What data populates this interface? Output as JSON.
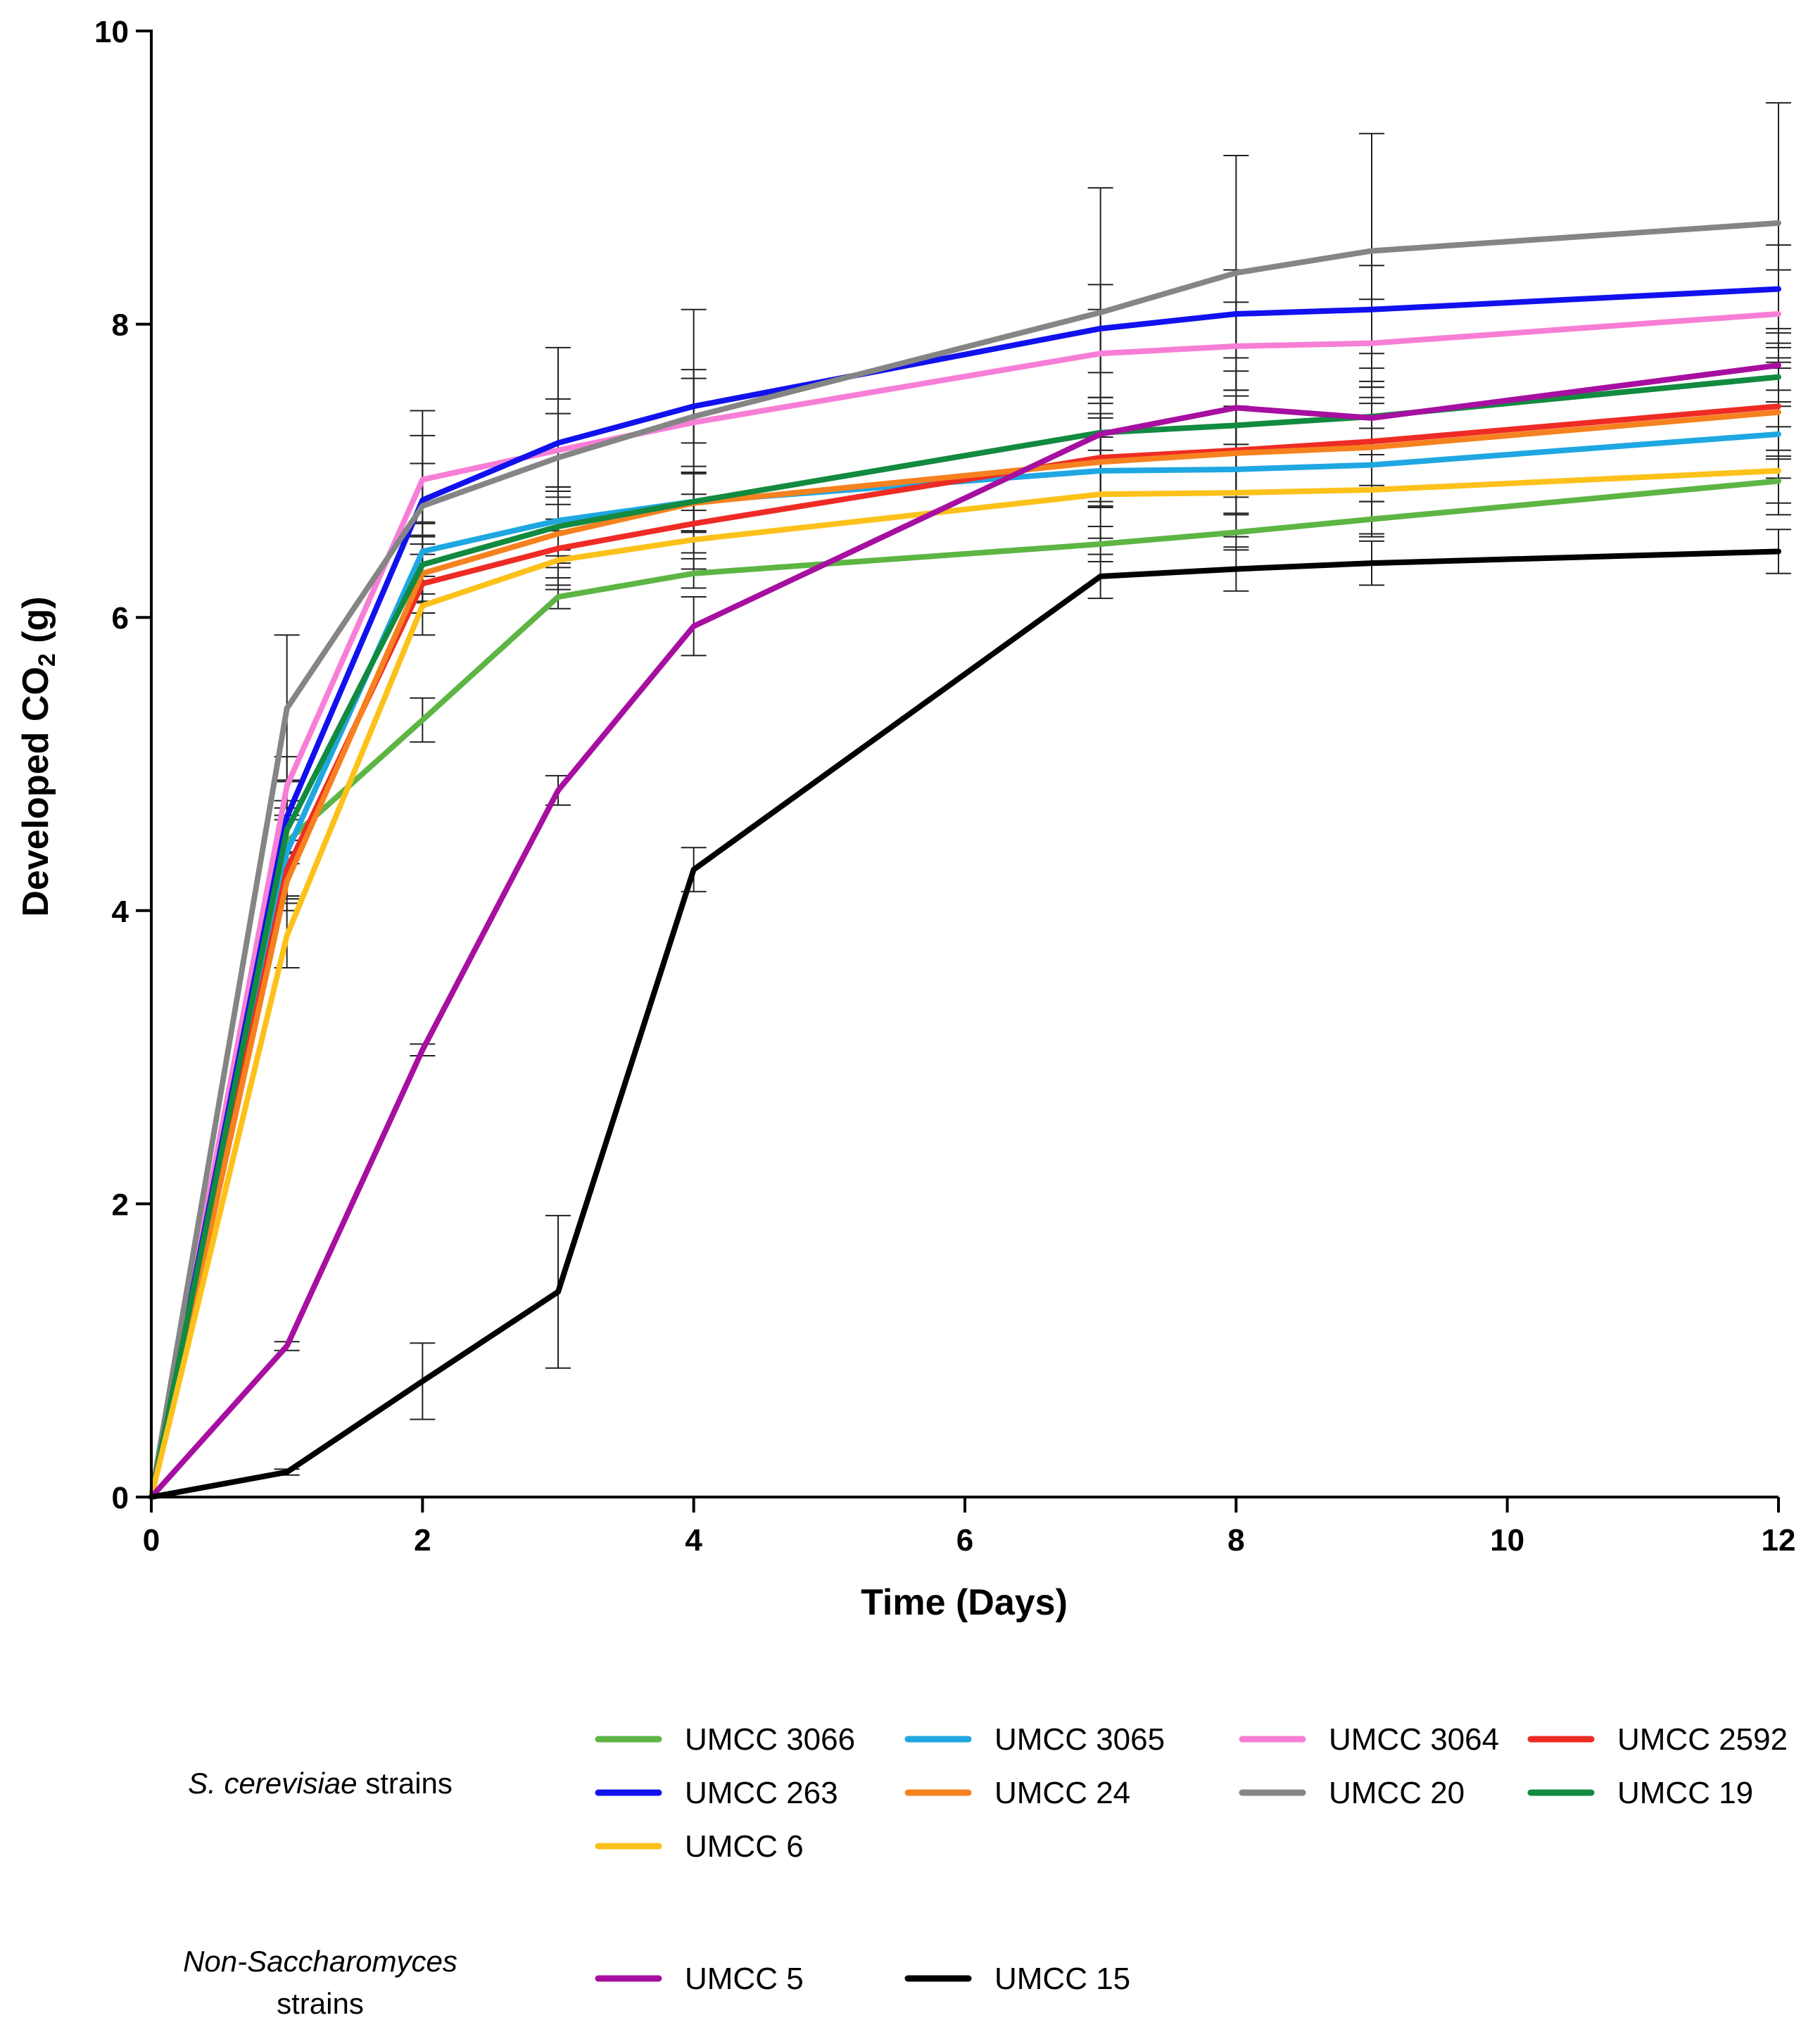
{
  "chart_data": {
    "type": "line",
    "title": "",
    "xlabel": "Time (Days)",
    "ylabel_main": "Developed CO",
    "ylabel_sub": "2",
    "ylabel_unit": " (g)",
    "xlim": [
      0,
      12
    ],
    "ylim": [
      0,
      10
    ],
    "xticks": [
      0,
      2,
      4,
      6,
      8,
      10,
      12
    ],
    "yticks": [
      0,
      2,
      4,
      6,
      8,
      10
    ],
    "grid": false,
    "legend_position": "bottom",
    "x": [
      0,
      1,
      2,
      3,
      4,
      7,
      8,
      9,
      12
    ],
    "series": [
      {
        "name": "UMCC 3066",
        "group": "scer",
        "color": "#5db544",
        "values": [
          0,
          4.47,
          5.3,
          6.14,
          6.3,
          6.5,
          6.58,
          6.67,
          6.93
        ],
        "errors": [
          0,
          0.15,
          0.15,
          0.08,
          0.1,
          0.12,
          0.12,
          0.12,
          0.15
        ]
      },
      {
        "name": "UMCC 3065",
        "group": "scer",
        "color": "#1fa7e2",
        "values": [
          0,
          4.4,
          6.45,
          6.66,
          6.79,
          7.0,
          7.01,
          7.04,
          7.25
        ],
        "errors": [
          0,
          0.3,
          0.2,
          0.2,
          0.2,
          0.25,
          0.3,
          0.25,
          0.3
        ]
      },
      {
        "name": "UMCC 3064",
        "group": "scer",
        "color": "#f77ed6",
        "values": [
          0,
          4.85,
          6.94,
          7.14,
          7.33,
          7.8,
          7.85,
          7.87,
          8.07
        ],
        "errors": [
          0,
          0.2,
          0.3,
          0.25,
          0.3,
          0.3,
          0.3,
          0.3,
          0.3
        ]
      },
      {
        "name": "UMCC 2592",
        "group": "scer",
        "color": "#ee2b24",
        "values": [
          0,
          4.28,
          6.23,
          6.47,
          6.64,
          7.09,
          7.14,
          7.2,
          7.44
        ],
        "errors": [
          0,
          0.2,
          0.2,
          0.2,
          0.2,
          0.3,
          0.3,
          0.3,
          0.3
        ]
      },
      {
        "name": "UMCC 263",
        "group": "scer",
        "color": "#1111ee",
        "values": [
          0,
          4.64,
          6.8,
          7.19,
          7.44,
          7.97,
          8.07,
          8.1,
          8.24
        ],
        "errors": [
          0,
          0.25,
          0.25,
          0.3,
          0.25,
          0.3,
          0.3,
          0.3,
          0.3
        ]
      },
      {
        "name": "UMCC 24",
        "group": "scer",
        "color": "#f6811f",
        "values": [
          0,
          4.2,
          6.3,
          6.57,
          6.78,
          7.06,
          7.12,
          7.16,
          7.4
        ],
        "errors": [
          0,
          0.2,
          0.2,
          0.2,
          0.2,
          0.3,
          0.3,
          0.3,
          0.3
        ]
      },
      {
        "name": "UMCC 20",
        "group": "scer",
        "color": "#858585",
        "values": [
          0,
          5.38,
          6.76,
          7.09,
          7.37,
          8.08,
          8.35,
          8.5,
          8.69
        ],
        "errors": [
          0,
          0.5,
          0.65,
          0.75,
          0.73,
          0.85,
          0.8,
          0.8,
          0.82
        ]
      },
      {
        "name": "UMCC 19",
        "group": "scer",
        "color": "#128a3f",
        "values": [
          0,
          4.55,
          6.36,
          6.62,
          6.79,
          7.26,
          7.31,
          7.37,
          7.64
        ],
        "errors": [
          0,
          0.2,
          0.2,
          0.2,
          0.2,
          0.2,
          0.2,
          0.2,
          0.2
        ]
      },
      {
        "name": "UMCC 6",
        "group": "scer",
        "color": "#fcc11a",
        "values": [
          0,
          3.83,
          6.08,
          6.39,
          6.53,
          6.84,
          6.85,
          6.87,
          7.0
        ],
        "errors": [
          0,
          0.22,
          0.2,
          0.2,
          0.2,
          0.3,
          0.3,
          0.3,
          0.3
        ]
      },
      {
        "name": "UMCC 5",
        "group": "nonsac",
        "color": "#a70fa0",
        "values": [
          0,
          1.03,
          3.05,
          4.82,
          5.94,
          7.25,
          7.43,
          7.36,
          7.72
        ],
        "errors": [
          0,
          0.03,
          0.04,
          0.1,
          0.2,
          0.25,
          0.25,
          0.25,
          0.25
        ]
      },
      {
        "name": "UMCC 15",
        "group": "nonsac",
        "color": "#000000",
        "values": [
          0,
          0.17,
          0.79,
          1.4,
          4.28,
          6.28,
          6.33,
          6.37,
          6.45
        ],
        "errors": [
          0,
          0.02,
          0.26,
          0.52,
          0.15,
          0.15,
          0.15,
          0.15,
          0.15
        ]
      }
    ]
  },
  "legend": {
    "scer_label_italic": "S. cerevisiae",
    "scer_label_rest": " strains",
    "nonsac_label_line1": "Non-Saccharomyces",
    "nonsac_label_line2": "strains"
  }
}
